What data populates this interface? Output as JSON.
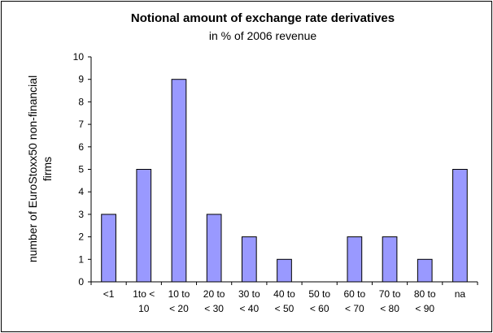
{
  "chart_data": {
    "type": "bar",
    "title": "Notional amount of exchange rate derivatives",
    "subtitle": "in % of 2006 revenue",
    "ylabel_lines": [
      "number of EuroStoxx50 non-financial",
      "firms"
    ],
    "categories": [
      [
        "<1",
        ""
      ],
      [
        "1to <",
        "10"
      ],
      [
        "10 to",
        "< 20"
      ],
      [
        "20 to",
        "< 30"
      ],
      [
        "30 to",
        "< 40"
      ],
      [
        "40 to",
        "< 50"
      ],
      [
        "50 to",
        "< 60"
      ],
      [
        "60 to",
        "< 70"
      ],
      [
        "70 to",
        "< 80"
      ],
      [
        "80 to",
        "< 90"
      ],
      [
        "na",
        ""
      ]
    ],
    "values": [
      3,
      5,
      9,
      3,
      2,
      1,
      0,
      2,
      2,
      1,
      5
    ],
    "ylim": [
      0,
      10
    ],
    "yticks": [
      "0",
      "1",
      "2",
      "3",
      "4",
      "5",
      "6",
      "7",
      "8",
      "9",
      "10"
    ],
    "grid": false,
    "legend": "none",
    "bar_color": "#9999ff",
    "bar_edge": "#000000"
  }
}
